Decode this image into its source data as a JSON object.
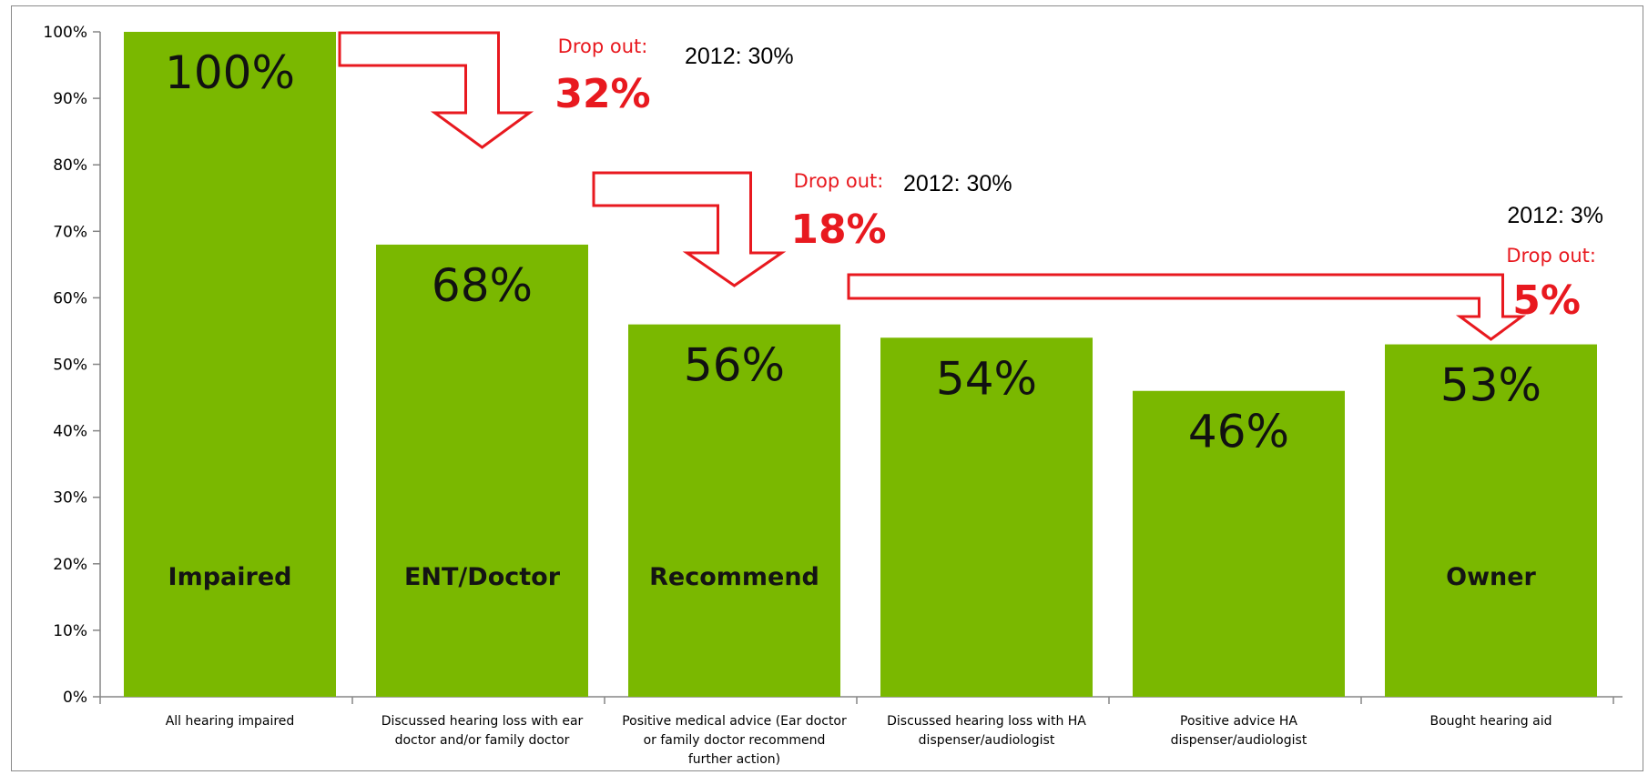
{
  "chart_data": {
    "type": "bar",
    "categories": [
      [
        "All hearing impaired"
      ],
      [
        "Discussed hearing loss with ear",
        "doctor and/or family doctor"
      ],
      [
        "Positive medical advice (Ear doctor",
        "or family doctor recommend",
        "further action)"
      ],
      [
        "Discussed hearing loss with HA",
        "dispenser/audiologist"
      ],
      [
        "Positive advice HA",
        "dispenser/audiologist"
      ],
      [
        "Bought hearing aid"
      ]
    ],
    "values": [
      100,
      68,
      56,
      54,
      46,
      53
    ],
    "value_labels": [
      "100%",
      "68%",
      "56%",
      "54%",
      "46%",
      "53%"
    ],
    "bar_names": [
      "Impaired",
      "ENT/Doctor",
      "Recommend",
      "",
      "",
      "Owner"
    ],
    "ylim": [
      0,
      100
    ],
    "yticks": [
      0,
      10,
      20,
      30,
      40,
      50,
      60,
      70,
      80,
      90,
      100
    ],
    "ytick_labels": [
      "0%",
      "10%",
      "20%",
      "30%",
      "40%",
      "50%",
      "60%",
      "70%",
      "80%",
      "90%",
      "100%"
    ],
    "bar_color": "#7ab800",
    "grid": false,
    "annotations": [
      {
        "from_bar": 0,
        "to_bar": 1,
        "label": "Drop out:",
        "value": "32%",
        "note": "2012: 30%"
      },
      {
        "from_bar": 1,
        "to_bar": 2,
        "label": "Drop out:",
        "value": "18%",
        "note": "2012: 30%"
      },
      {
        "from_bar": 2,
        "to_bar": 5,
        "label": "Drop out:",
        "value": "5%",
        "note": "2012: 3%"
      }
    ],
    "annotation_color": "#e8191f"
  }
}
